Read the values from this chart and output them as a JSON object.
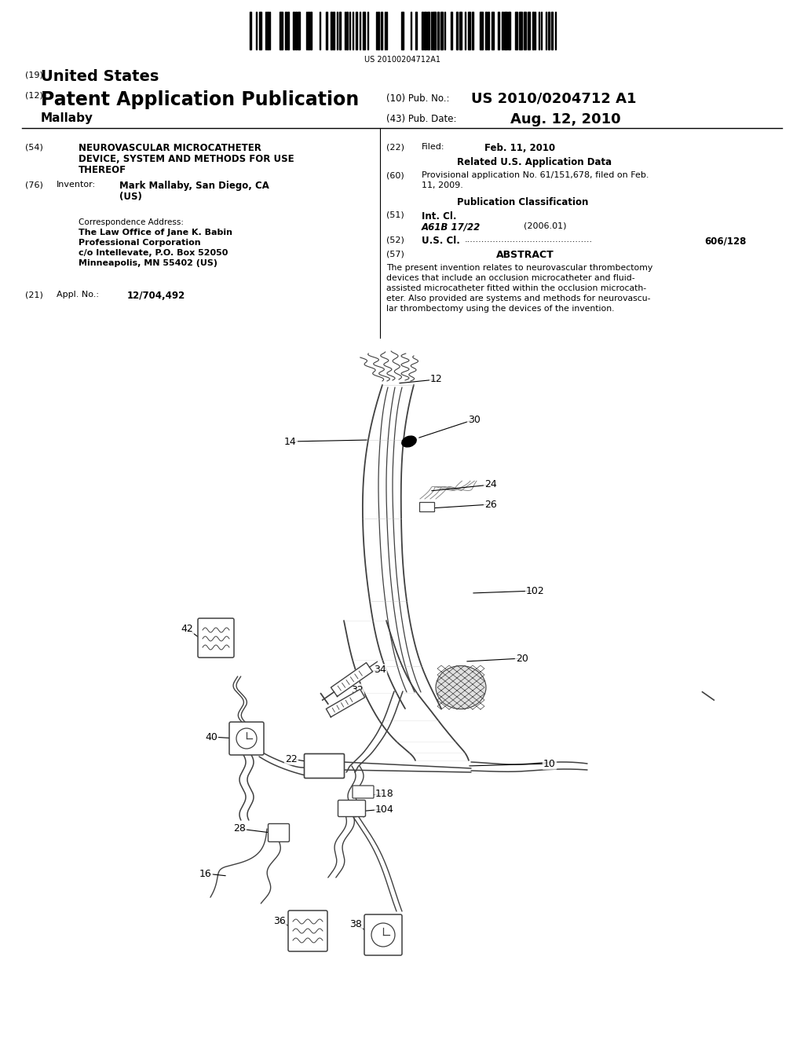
{
  "background_color": "#ffffff",
  "page_width": 10.24,
  "page_height": 13.2,
  "barcode_text": "US 20100204712A1",
  "title_19_small": "(19)",
  "title_19_bold": "United States",
  "title_12_small": "(12)",
  "title_12_bold": "Patent Application Publication",
  "pub_no_label": "(10) Pub. No.:",
  "pub_no_value": "US 2010/0204712 A1",
  "author_indent": "Mallaby",
  "pub_date_label": "(43) Pub. Date:",
  "pub_date_value": "Aug. 12, 2010",
  "field54_label": "(54)",
  "field54_lines": [
    "NEUROVASCULAR MICROCATHETER",
    "DEVICE, SYSTEM AND METHODS FOR USE",
    "THEREOF"
  ],
  "field76_label": "(76)",
  "field76_name": "Inventor:",
  "field76_val1": "Mark Mallaby, San Diego, CA",
  "field76_val2": "(US)",
  "corr_label": "Correspondence Address:",
  "corr_line1": "The Law Office of Jane K. Babin",
  "corr_line2": "Professional Corporation",
  "corr_line3": "c/o Intellevate, P.O. Box 52050",
  "corr_line4": "Minneapolis, MN 55402 (US)",
  "field21_label": "(21)",
  "field21_name": "Appl. No.:",
  "field21_value": "12/704,492",
  "field22_label": "(22)",
  "field22_name": "Filed:",
  "field22_value": "Feb. 11, 2010",
  "related_header": "Related U.S. Application Data",
  "field60_label": "(60)",
  "field60_line1": "Provisional application No. 61/151,678, filed on Feb.",
  "field60_line2": "11, 2009.",
  "pub_class_header": "Publication Classification",
  "field51_label": "(51)",
  "field51_name": "Int. Cl.",
  "field51_class": "A61B 17/22",
  "field51_year": "(2006.01)",
  "field52_label": "(52)",
  "field52_name": "U.S. Cl.",
  "field52_dots": ".............................................",
  "field52_value": "606/128",
  "field57_label": "(57)",
  "abstract_header": "ABSTRACT",
  "abstract_lines": [
    "The present invention relates to neurovascular thrombectomy",
    "devices that include an occlusion microcatheter and fluid-",
    "assisted microcatheter fitted within the occlusion microcath-",
    "eter. Also provided are systems and methods for neurovascu-",
    "lar thrombectomy using the devices of the invention."
  ]
}
